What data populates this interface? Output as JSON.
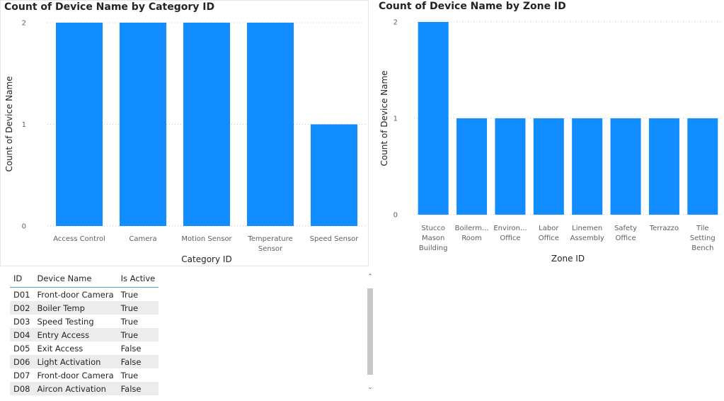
{
  "chart_data": [
    {
      "type": "bar",
      "title": "Count of Device Name by Category ID",
      "xlabel": "Category ID",
      "ylabel": "Count of Device Name",
      "categories": [
        "Access Control",
        "Camera",
        "Motion Sensor",
        "Temperature Sensor",
        "Speed Sensor"
      ],
      "category_lines": [
        [
          "Access Control"
        ],
        [
          "Camera"
        ],
        [
          "Motion Sensor"
        ],
        [
          "Temperature",
          "Sensor"
        ],
        [
          "Speed Sensor"
        ]
      ],
      "values": [
        2,
        2,
        2,
        2,
        1
      ],
      "ylim": [
        0,
        2
      ],
      "yticks": [
        "0",
        "1",
        "2"
      ],
      "grid": true,
      "color": "#118dff"
    },
    {
      "type": "bar",
      "title": "Count of Device Name by Zone ID",
      "xlabel": "Zone ID",
      "ylabel": "Count of Device Name",
      "categories": [
        "Stucco Mason Building",
        "Boilerm... Room",
        "Environ... Office",
        "Labor Office",
        "Linemen Assembly",
        "Safety Office",
        "Terrazzo",
        "Tile Setting Bench"
      ],
      "category_lines": [
        [
          "Stucco",
          "Mason",
          "Building"
        ],
        [
          "Boilerm...",
          "Room"
        ],
        [
          "Environ...",
          "Office"
        ],
        [
          "Labor",
          "Office"
        ],
        [
          "Linemen",
          "Assembly"
        ],
        [
          "Safety",
          "Office"
        ],
        [
          "Terrazzo"
        ],
        [
          "Tile",
          "Setting",
          "Bench"
        ]
      ],
      "values": [
        2,
        1,
        1,
        1,
        1,
        1,
        1,
        1
      ],
      "ylim": [
        0,
        2
      ],
      "yticks": [
        "0",
        "1",
        "2"
      ],
      "grid": true,
      "color": "#118dff"
    }
  ],
  "table": {
    "columns": [
      "ID",
      "Device Name",
      "Is Active"
    ],
    "rows": [
      [
        "D01",
        "Front-door Camera",
        "True"
      ],
      [
        "D02",
        "Boiler Temp",
        "True"
      ],
      [
        "D03",
        "Speed Testing",
        "True"
      ],
      [
        "D04",
        "Entry Access",
        "True"
      ],
      [
        "D05",
        "Exit Access",
        "False"
      ],
      [
        "D06",
        "Light Activation",
        "False"
      ],
      [
        "D07",
        "Front-door Camera",
        "True"
      ],
      [
        "D08",
        "Aircon Activation",
        "False"
      ]
    ],
    "header_underline_color": "#4da3d9",
    "stripe_color": "#ececec"
  },
  "icons": {
    "scroll_up": "chevron-up-icon",
    "scroll_down": "chevron-down-icon"
  }
}
